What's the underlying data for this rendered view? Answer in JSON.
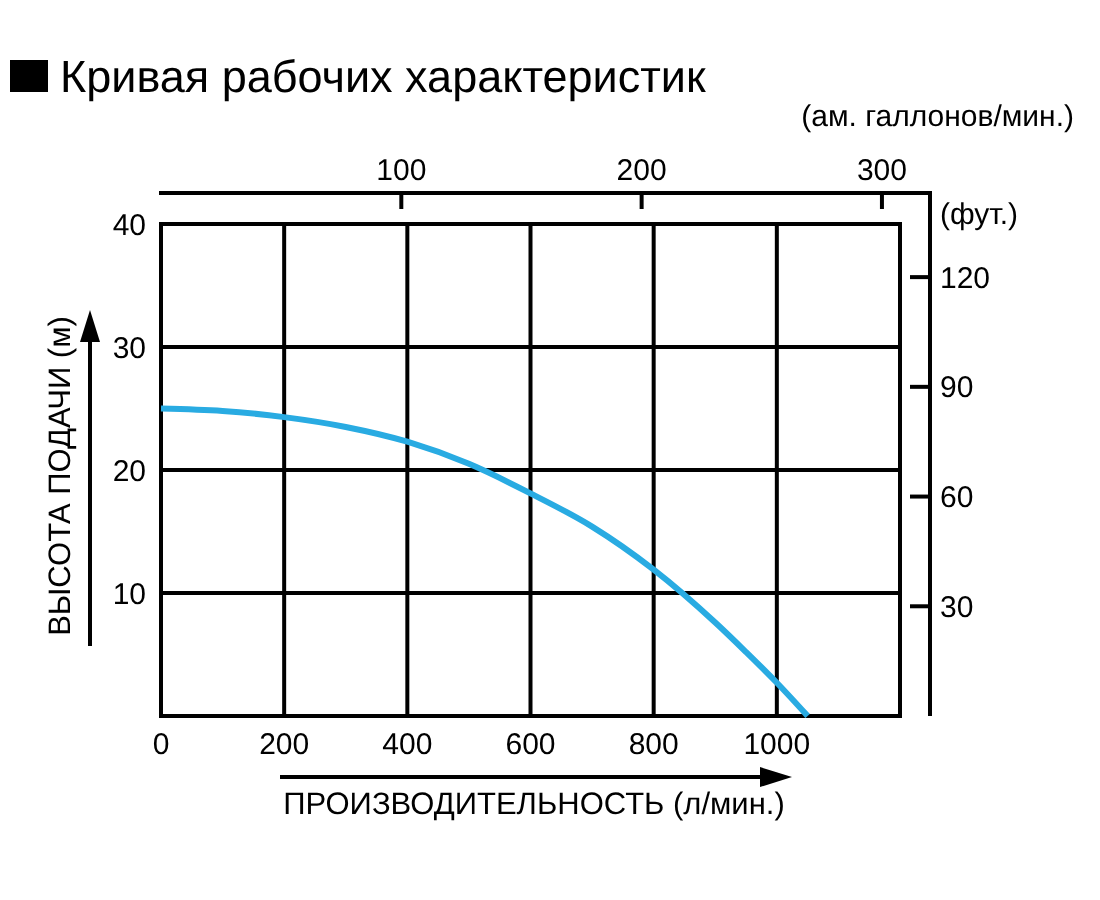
{
  "chart_data": {
    "type": "line",
    "title": "Кривая рабочих характеристик",
    "xlabel": "ПРОИЗВОДИТЕЛЬНОСТЬ (л/мин.)",
    "ylabel": "ВЫСОТА ПОДАЧИ (м)",
    "x2label": "(ам. галлонов/мин.)",
    "y2label": "(фут.)",
    "x": [
      0,
      100,
      200,
      300,
      400,
      500,
      600,
      700,
      800,
      900,
      950,
      1000,
      1050
    ],
    "series": [
      {
        "color": "#29abe2",
        "values": [
          25,
          24.8,
          24.3,
          23.5,
          22.3,
          20.5,
          18.1,
          15.4,
          11.9,
          7.6,
          5.2,
          2.7,
          0
        ]
      }
    ],
    "xlim": [
      0,
      1200
    ],
    "xticks": [
      0,
      200,
      400,
      600,
      800,
      1000
    ],
    "ylim": [
      0,
      40
    ],
    "yticks": [
      10,
      20,
      30,
      40
    ],
    "x2lim": [
      0,
      320
    ],
    "x2ticks": [
      100,
      200,
      300
    ],
    "y2lim": [
      0,
      143
    ],
    "y2ticks": [
      30,
      60,
      90,
      120
    ],
    "grid": true
  }
}
